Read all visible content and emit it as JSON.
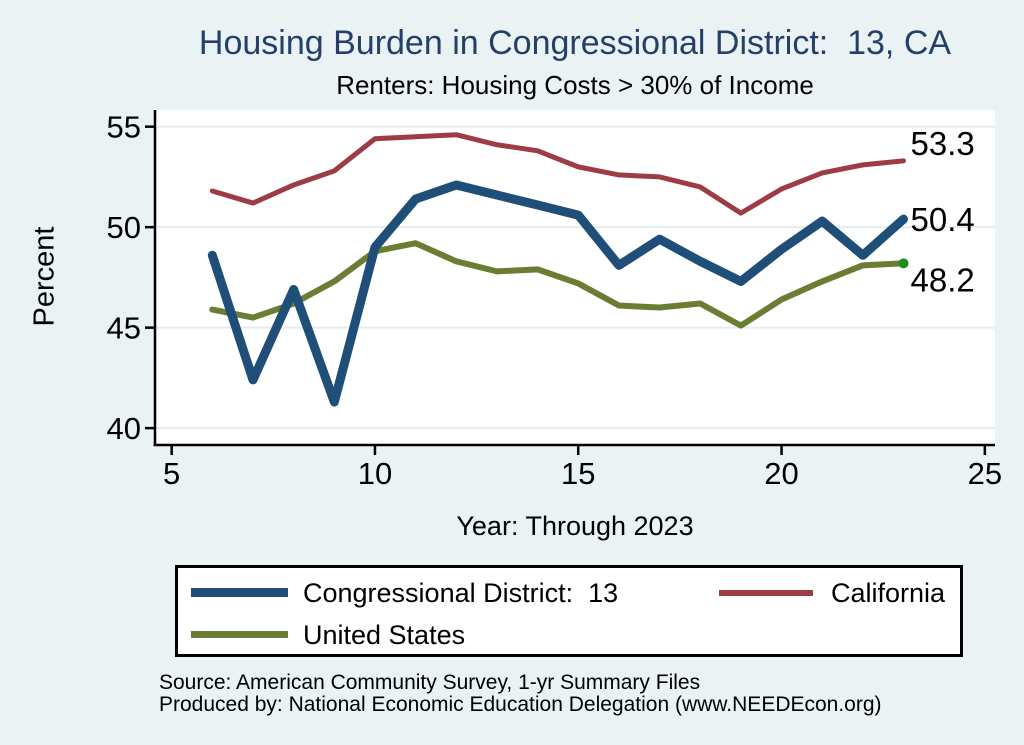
{
  "title": "Housing Burden in Congressional District:  13, CA",
  "subtitle": "Renters: Housing Costs > 30% of Income",
  "footer": {
    "line1": "Source: American Community Survey, 1-yr Summary Files",
    "line2": "Produced by: National Economic Education Delegation (www.NEEDEcon.org)"
  },
  "colors": {
    "background": "#eaf2f3",
    "plot_background": "#ffffff",
    "gridline": "#e3edf0",
    "axis": "#000000",
    "title_text": "#233f6a",
    "cd13_line": "#1f4e78",
    "california_line": "#9e3c46",
    "us_line": "#6b7c33",
    "us_end_marker": "#1e8c1e"
  },
  "chart_data": {
    "type": "line",
    "title": "Housing Burden in Congressional District:  13, CA",
    "subtitle": "Renters: Housing Costs > 30% of Income",
    "xlabel": "Year: Through 2023",
    "ylabel": "Percent",
    "x": [
      6,
      7,
      8,
      9,
      10,
      11,
      12,
      13,
      14,
      15,
      16,
      17,
      18,
      19,
      20,
      21,
      22,
      23
    ],
    "series": [
      {
        "name": "Congressional District:  13",
        "key": "cd13",
        "color": "#1f4e78",
        "line_width": 9,
        "values": [
          48.6,
          42.4,
          46.9,
          41.3,
          49.0,
          51.4,
          52.1,
          51.6,
          51.1,
          50.6,
          48.1,
          49.4,
          48.3,
          47.3,
          48.9,
          50.3,
          48.6,
          50.4
        ],
        "end_label": "50.4",
        "label_dy": 12
      },
      {
        "name": "California",
        "key": "california",
        "color": "#9e3c46",
        "line_width": 5,
        "values": [
          51.8,
          51.2,
          52.1,
          52.8,
          54.4,
          54.5,
          54.6,
          54.1,
          53.8,
          53.0,
          52.6,
          52.5,
          52.0,
          50.7,
          51.9,
          52.7,
          53.1,
          53.3
        ],
        "end_label": "53.3",
        "label_dy": -6
      },
      {
        "name": "United States",
        "key": "us",
        "color": "#6b7c33",
        "line_width": 6,
        "values": [
          45.9,
          45.5,
          46.2,
          47.3,
          48.8,
          49.2,
          48.3,
          47.8,
          47.9,
          47.2,
          46.1,
          46.0,
          46.2,
          45.1,
          46.4,
          47.3,
          48.1,
          48.2
        ],
        "end_label": "48.2",
        "label_dy": 28,
        "end_marker_color": "#1e8c1e"
      }
    ],
    "x_ticks": [
      5,
      10,
      15,
      20,
      25
    ],
    "y_ticks": [
      40,
      45,
      50,
      55
    ],
    "xlim": [
      4.59,
      25.25
    ],
    "ylim": [
      39.16,
      55.83
    ],
    "grid": true,
    "legend_position": "bottom"
  }
}
